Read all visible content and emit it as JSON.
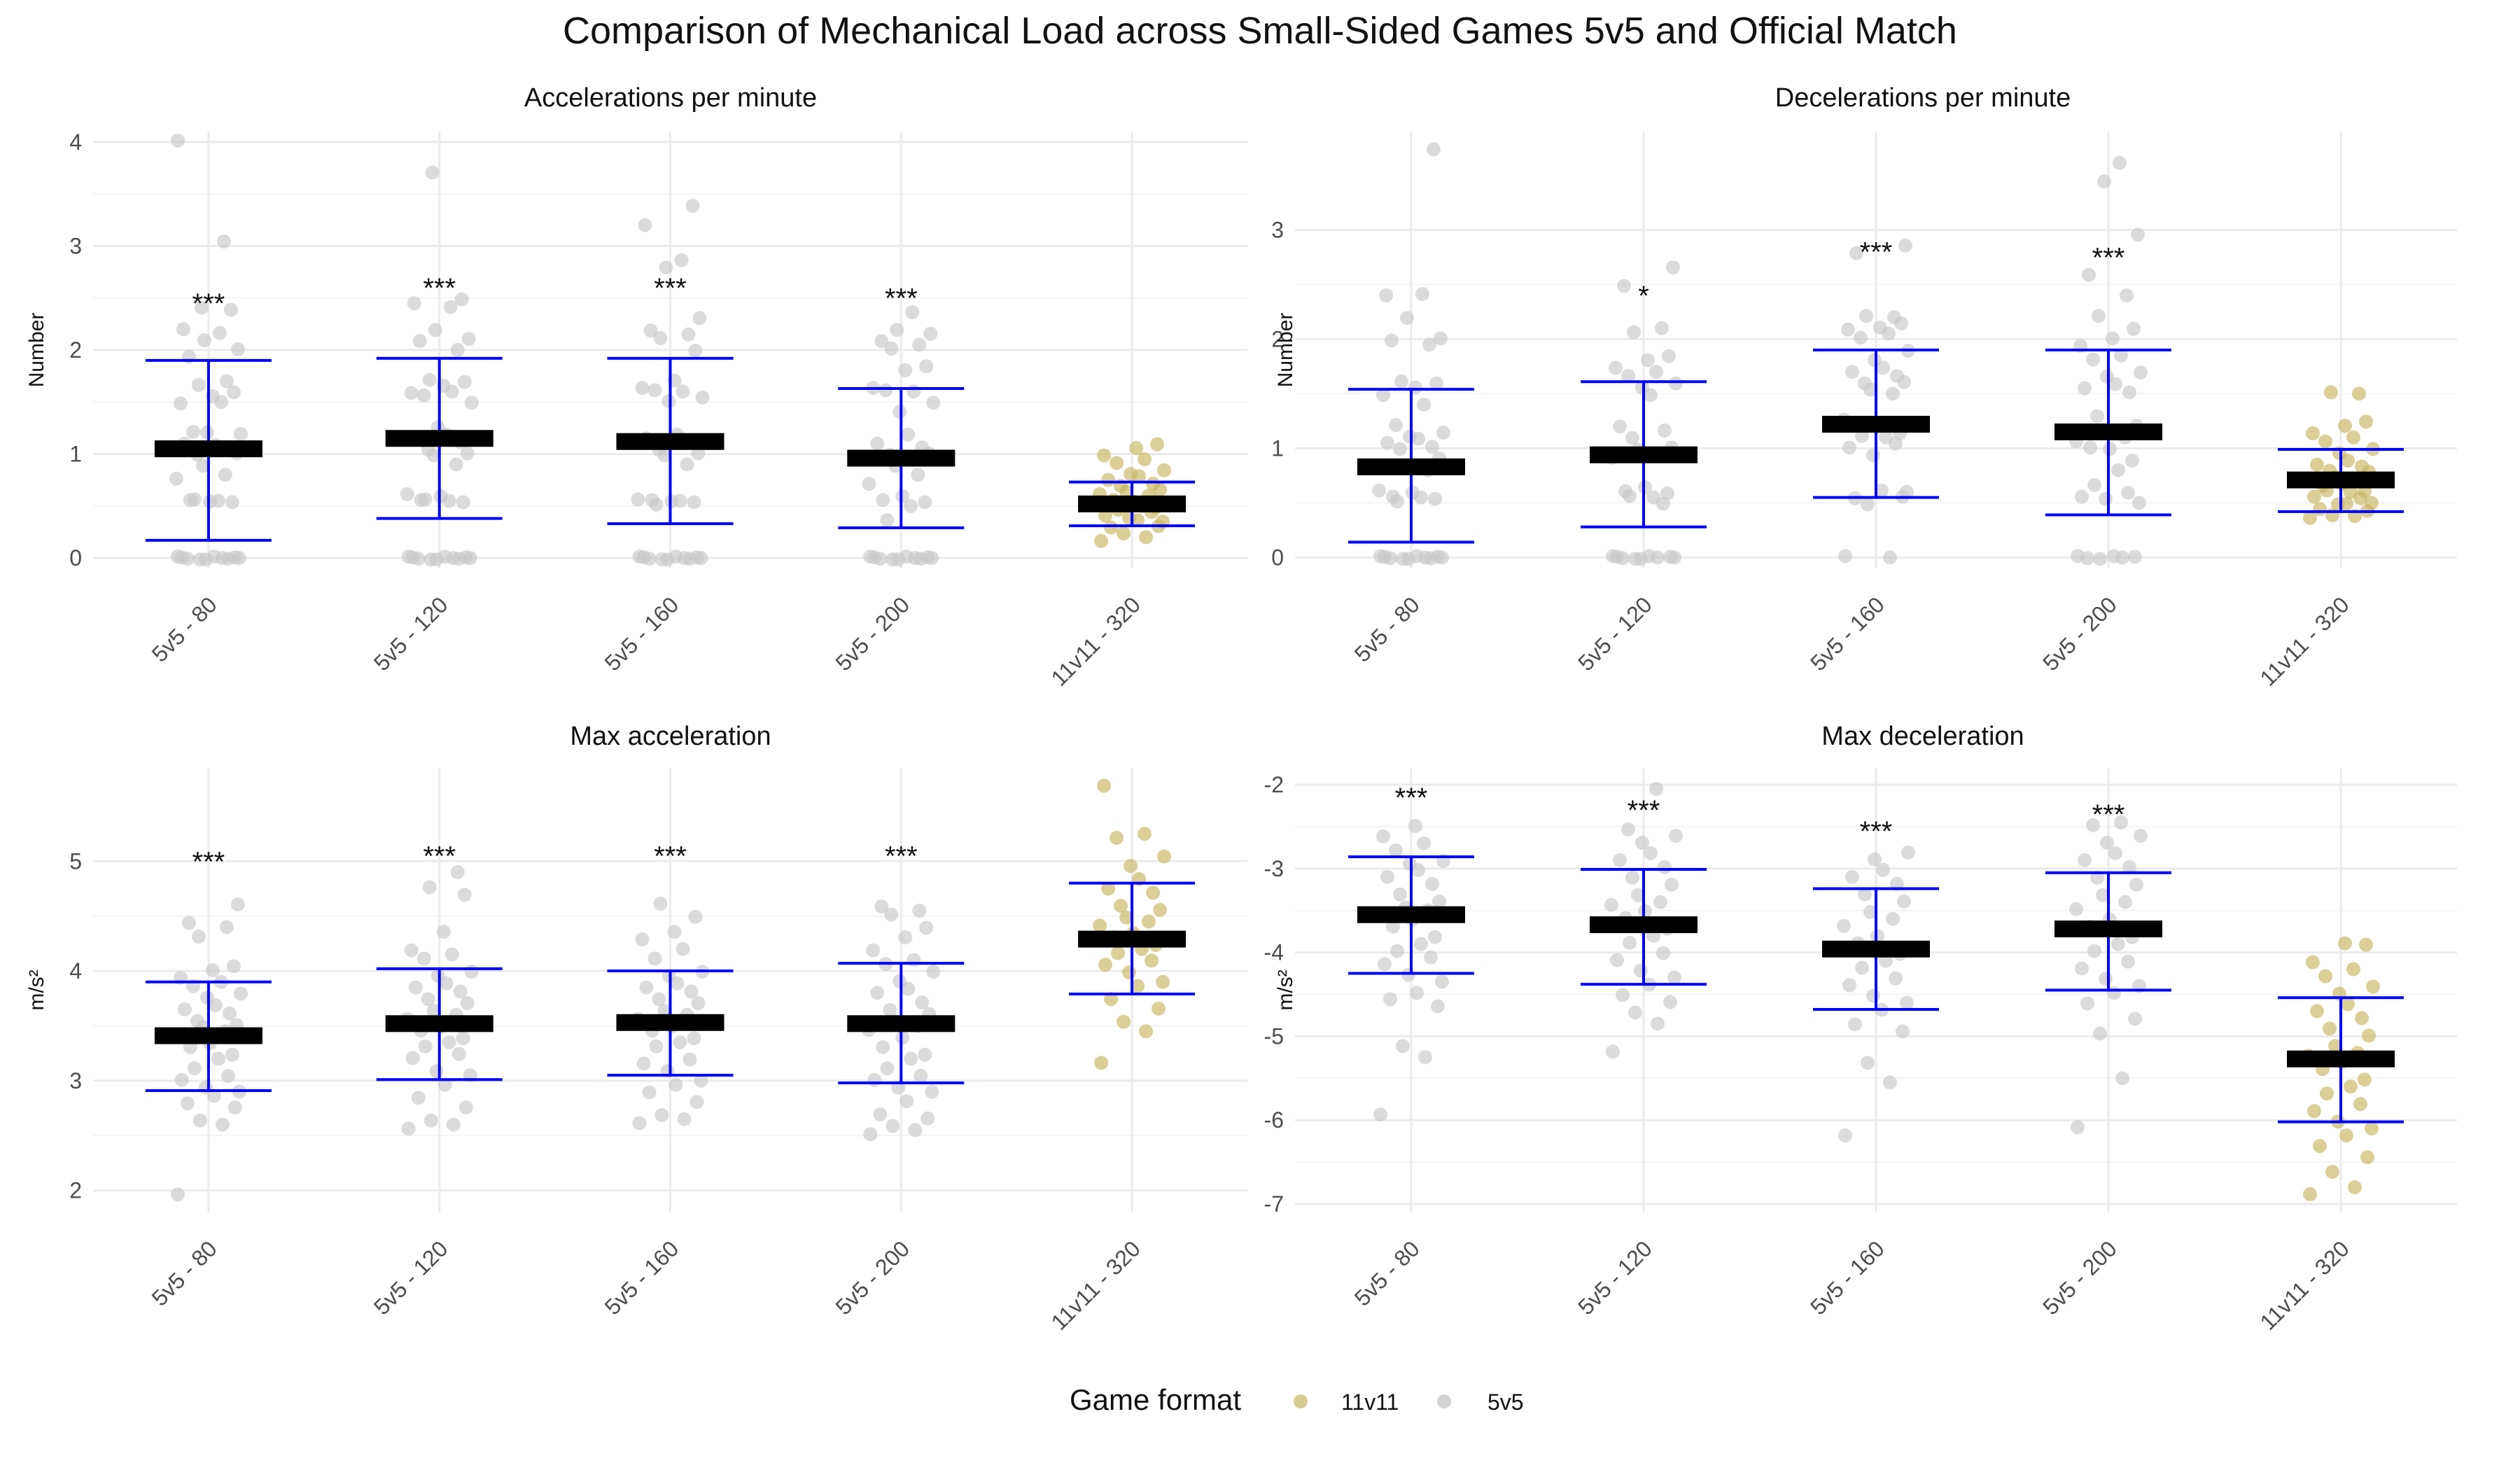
{
  "title": "Comparison of Mechanical Load across Small-Sided Games 5v5 and Official Match",
  "legend": {
    "title": "Game format",
    "items": [
      {
        "label": "11v11",
        "color": "#c8b560"
      },
      {
        "label": "5v5",
        "color": "#c8c8c8"
      }
    ]
  },
  "colors": {
    "errorbar": "#0000ff",
    "mean": "#000000",
    "11v11": "#c8b560",
    "5v5": "#c8c8c8"
  },
  "chart_data": [
    {
      "type": "scatter",
      "title": "Accelerations per minute",
      "ylabel": "Number",
      "categories": [
        "5v5 - 80",
        "5v5 - 120",
        "5v5 - 160",
        "5v5 - 200",
        "11v11 - 320"
      ],
      "ylim": [
        -0.1,
        4.1
      ],
      "yticks": [
        0,
        1,
        2,
        3,
        4
      ],
      "ytick_labels": [
        "0",
        "1",
        "2",
        "3",
        "4"
      ],
      "mean": [
        1.05,
        1.15,
        1.12,
        0.96,
        0.52
      ],
      "err_low": [
        0.17,
        0.38,
        0.33,
        0.29,
        0.31
      ],
      "err_high": [
        1.9,
        1.92,
        1.92,
        1.63,
        0.73
      ],
      "significance": [
        "***",
        "***",
        "***",
        "***",
        ""
      ],
      "sig_y": [
        2.45,
        2.6,
        2.6,
        2.5,
        null
      ],
      "points": [
        [
          0,
          0,
          0,
          0,
          0,
          0,
          0,
          0,
          0,
          0,
          0.55,
          0.55,
          0.55,
          0.55,
          0.55,
          0.75,
          0.8,
          0.9,
          1.0,
          1.0,
          1.05,
          1.1,
          1.1,
          1.2,
          1.2,
          1.2,
          1.5,
          1.5,
          1.55,
          1.6,
          1.65,
          1.7,
          1.95,
          2.0,
          2.1,
          2.15,
          2.2,
          2.4,
          2.4,
          3.05,
          4.0
        ],
        [
          0,
          0,
          0,
          0,
          0,
          0,
          0,
          0,
          0,
          0,
          0.55,
          0.55,
          0.55,
          0.55,
          0.6,
          0.6,
          0.9,
          1.0,
          1.0,
          1.05,
          1.1,
          1.15,
          1.2,
          1.25,
          1.5,
          1.55,
          1.6,
          1.6,
          1.65,
          1.7,
          1.7,
          2.0,
          2.1,
          2.1,
          2.2,
          2.4,
          2.45,
          2.5,
          3.7
        ],
        [
          0,
          0,
          0,
          0,
          0,
          0,
          0,
          0,
          0,
          0,
          0.5,
          0.55,
          0.55,
          0.55,
          0.55,
          0.55,
          0.9,
          1.0,
          1.0,
          1.05,
          1.1,
          1.15,
          1.2,
          1.5,
          1.55,
          1.6,
          1.6,
          1.65,
          1.7,
          2.0,
          2.1,
          2.15,
          2.2,
          2.3,
          2.8,
          2.85,
          3.2,
          3.4
        ],
        [
          0,
          0,
          0,
          0,
          0,
          0,
          0,
          0,
          0,
          0,
          0.35,
          0.5,
          0.55,
          0.55,
          0.6,
          0.7,
          0.8,
          0.9,
          1.0,
          1.0,
          1.05,
          1.1,
          1.2,
          1.4,
          1.5,
          1.6,
          1.6,
          1.65,
          1.8,
          1.85,
          2.0,
          2.05,
          2.1,
          2.15,
          2.2,
          2.35
        ],
        [
          0.15,
          0.2,
          0.25,
          0.3,
          0.3,
          0.35,
          0.35,
          0.4,
          0.4,
          0.45,
          0.45,
          0.5,
          0.5,
          0.55,
          0.55,
          0.6,
          0.6,
          0.65,
          0.65,
          0.7,
          0.7,
          0.75,
          0.8,
          0.8,
          0.85,
          0.9,
          0.95,
          1.0,
          1.05,
          1.1
        ]
      ]
    },
    {
      "type": "scatter",
      "title": "Decelerations per minute",
      "ylabel": "Number",
      "categories": [
        "5v5 - 80",
        "5v5 - 120",
        "5v5 - 160",
        "5v5 - 200",
        "11v11 - 320"
      ],
      "ylim": [
        -0.1,
        3.9
      ],
      "yticks": [
        0,
        1,
        2,
        3
      ],
      "ytick_labels": [
        "0",
        "1",
        "2",
        "3"
      ],
      "mean": [
        0.83,
        0.94,
        1.22,
        1.15,
        0.71
      ],
      "err_low": [
        0.14,
        0.28,
        0.55,
        0.39,
        0.42
      ],
      "err_high": [
        1.54,
        1.61,
        1.9,
        1.9,
        0.99
      ],
      "significance": [
        "",
        "*",
        "***",
        "***",
        ""
      ],
      "sig_y": [
        null,
        2.4,
        2.8,
        2.75,
        null
      ],
      "points": [
        [
          0,
          0,
          0,
          0,
          0,
          0,
          0,
          0,
          0,
          0,
          0.5,
          0.55,
          0.55,
          0.55,
          0.6,
          0.6,
          0.8,
          0.85,
          0.9,
          1.0,
          1.0,
          1.05,
          1.1,
          1.1,
          1.15,
          1.2,
          1.4,
          1.5,
          1.55,
          1.6,
          1.6,
          1.95,
          2.0,
          2.0,
          2.2,
          2.4,
          2.4,
          3.75
        ],
        [
          0,
          0,
          0,
          0,
          0,
          0,
          0,
          0,
          0,
          0.5,
          0.55,
          0.55,
          0.6,
          0.6,
          0.65,
          0.9,
          0.95,
          1.0,
          1.0,
          1.1,
          1.15,
          1.2,
          1.5,
          1.55,
          1.6,
          1.65,
          1.7,
          1.75,
          1.8,
          1.85,
          2.05,
          2.1,
          2.5,
          2.65
        ],
        [
          0,
          0,
          0.5,
          0.55,
          0.55,
          0.6,
          0.6,
          0.95,
          1.0,
          1.05,
          1.1,
          1.1,
          1.15,
          1.2,
          1.2,
          1.25,
          1.5,
          1.55,
          1.6,
          1.6,
          1.65,
          1.7,
          1.75,
          1.8,
          1.9,
          2.0,
          2.05,
          2.1,
          2.1,
          2.15,
          2.2,
          2.2,
          2.8,
          2.85
        ],
        [
          0,
          0,
          0,
          0,
          0,
          0,
          0.5,
          0.55,
          0.55,
          0.6,
          0.65,
          0.8,
          0.9,
          1.0,
          1.0,
          1.05,
          1.1,
          1.15,
          1.2,
          1.3,
          1.5,
          1.55,
          1.6,
          1.65,
          1.7,
          1.8,
          1.85,
          1.95,
          2.0,
          2.1,
          2.2,
          2.4,
          2.6,
          2.95,
          3.45,
          3.6
        ],
        [
          0.35,
          0.38,
          0.4,
          0.42,
          0.45,
          0.48,
          0.5,
          0.5,
          0.55,
          0.55,
          0.6,
          0.6,
          0.62,
          0.65,
          0.68,
          0.7,
          0.72,
          0.75,
          0.78,
          0.8,
          0.82,
          0.85,
          0.9,
          0.95,
          1.0,
          1.05,
          1.1,
          1.15,
          1.2,
          1.25,
          1.5,
          1.5
        ]
      ]
    },
    {
      "type": "scatter",
      "title": "Max acceleration",
      "ylabel": "m/s²",
      "categories": [
        "5v5 - 80",
        "5v5 - 120",
        "5v5 - 160",
        "5v5 - 200",
        "11v11 - 320"
      ],
      "ylim": [
        1.8,
        5.85
      ],
      "yticks": [
        2,
        3,
        4,
        5
      ],
      "ytick_labels": [
        "2",
        "3",
        "4",
        "5"
      ],
      "mean": [
        3.41,
        3.52,
        3.53,
        3.52,
        4.29
      ],
      "err_low": [
        2.91,
        3.01,
        3.05,
        2.98,
        3.79
      ],
      "err_high": [
        3.9,
        4.02,
        4.0,
        4.07,
        4.8
      ],
      "significance": [
        "***",
        "***",
        "***",
        "***",
        ""
      ],
      "sig_y": [
        5.0,
        5.05,
        5.05,
        5.05,
        null
      ],
      "points": [
        [
          1.95,
          2.6,
          2.65,
          2.75,
          2.8,
          2.85,
          2.9,
          2.95,
          3.0,
          3.05,
          3.1,
          3.2,
          3.25,
          3.3,
          3.35,
          3.4,
          3.45,
          3.5,
          3.5,
          3.55,
          3.6,
          3.65,
          3.7,
          3.75,
          3.8,
          3.85,
          3.9,
          3.95,
          4.0,
          4.05,
          4.3,
          4.4,
          4.45,
          4.6
        ],
        [
          2.55,
          2.6,
          2.65,
          2.75,
          2.85,
          2.95,
          3.05,
          3.1,
          3.2,
          3.25,
          3.3,
          3.35,
          3.4,
          3.45,
          3.5,
          3.55,
          3.6,
          3.65,
          3.7,
          3.75,
          3.8,
          3.85,
          3.9,
          3.95,
          4.0,
          4.1,
          4.15,
          4.2,
          4.35,
          4.7,
          4.75,
          4.9
        ],
        [
          2.6,
          2.65,
          2.7,
          2.8,
          2.9,
          2.95,
          3.0,
          3.1,
          3.15,
          3.2,
          3.3,
          3.35,
          3.4,
          3.45,
          3.5,
          3.55,
          3.6,
          3.65,
          3.7,
          3.75,
          3.8,
          3.85,
          3.9,
          3.95,
          4.0,
          4.1,
          4.2,
          4.3,
          4.35,
          4.5,
          4.6
        ],
        [
          2.5,
          2.55,
          2.6,
          2.65,
          2.7,
          2.8,
          2.9,
          2.95,
          3.0,
          3.05,
          3.1,
          3.2,
          3.25,
          3.3,
          3.4,
          3.45,
          3.5,
          3.55,
          3.6,
          3.65,
          3.7,
          3.8,
          3.85,
          3.9,
          4.0,
          4.05,
          4.1,
          4.2,
          4.3,
          4.4,
          4.5,
          4.55,
          4.6
        ],
        [
          3.15,
          3.45,
          3.55,
          3.65,
          3.75,
          3.85,
          3.9,
          4.0,
          4.05,
          4.1,
          4.15,
          4.2,
          4.25,
          4.3,
          4.35,
          4.4,
          4.45,
          4.5,
          4.55,
          4.6,
          4.7,
          4.75,
          4.85,
          4.95,
          5.05,
          5.2,
          5.25,
          5.7
        ]
      ]
    },
    {
      "type": "scatter",
      "title": "Max deceleration",
      "ylabel": "m/s²",
      "categories": [
        "5v5 - 80",
        "5v5 - 120",
        "5v5 - 160",
        "5v5 - 200",
        "11v11 - 320"
      ],
      "ylim": [
        -7.1,
        -1.8
      ],
      "yticks": [
        -2,
        -3,
        -4,
        -5,
        -6,
        -7
      ],
      "ytick_labels": [
        "-2",
        "-3",
        "-4",
        "-5",
        "-6",
        "-7"
      ],
      "mean": [
        -3.55,
        -3.67,
        -3.96,
        -3.72,
        -5.27
      ],
      "err_low": [
        -4.25,
        -4.38,
        -4.68,
        -4.45,
        -6.02
      ],
      "err_high": [
        -2.86,
        -3.01,
        -3.24,
        -3.05,
        -4.54
      ],
      "significance": [
        "***",
        "***",
        "***",
        "***",
        ""
      ],
      "sig_y": [
        -2.15,
        -2.3,
        -2.55,
        -2.35,
        null
      ],
      "points": [
        [
          -5.95,
          -5.25,
          -5.1,
          -4.65,
          -4.55,
          -4.5,
          -4.35,
          -4.25,
          -4.15,
          -4.05,
          -4.0,
          -3.9,
          -3.8,
          -3.7,
          -3.6,
          -3.55,
          -3.5,
          -3.45,
          -3.4,
          -3.3,
          -3.2,
          -3.1,
          -3.0,
          -2.95,
          -2.9,
          -2.8,
          -2.7,
          -2.6,
          -2.5
        ],
        [
          -5.2,
          -4.85,
          -4.7,
          -4.6,
          -4.5,
          -4.4,
          -4.3,
          -4.2,
          -4.1,
          -4.0,
          -3.9,
          -3.8,
          -3.7,
          -3.6,
          -3.5,
          -3.45,
          -3.4,
          -3.3,
          -3.2,
          -3.1,
          -3.0,
          -2.9,
          -2.8,
          -2.7,
          -2.6,
          -2.55,
          -2.05
        ],
        [
          -6.2,
          -5.55,
          -5.3,
          -4.95,
          -4.85,
          -4.7,
          -4.6,
          -4.5,
          -4.4,
          -4.3,
          -4.2,
          -4.1,
          -4.0,
          -3.9,
          -3.8,
          -3.7,
          -3.6,
          -3.5,
          -3.4,
          -3.3,
          -3.2,
          -3.1,
          -3.0,
          -2.9,
          -2.8
        ],
        [
          -6.1,
          -5.5,
          -4.95,
          -4.8,
          -4.6,
          -4.5,
          -4.4,
          -4.3,
          -4.2,
          -4.1,
          -4.0,
          -3.9,
          -3.8,
          -3.7,
          -3.6,
          -3.5,
          -3.4,
          -3.3,
          -3.2,
          -3.1,
          -3.0,
          -2.9,
          -2.8,
          -2.7,
          -2.6,
          -2.5,
          -2.45
        ],
        [
          -6.9,
          -6.8,
          -6.6,
          -6.45,
          -6.3,
          -6.2,
          -6.1,
          -6.0,
          -5.9,
          -5.8,
          -5.7,
          -5.6,
          -5.5,
          -5.4,
          -5.3,
          -5.25,
          -5.2,
          -5.1,
          -5.0,
          -4.9,
          -4.8,
          -4.7,
          -4.6,
          -4.5,
          -4.4,
          -4.3,
          -4.2,
          -4.1,
          -3.9,
          -3.9
        ]
      ]
    }
  ]
}
